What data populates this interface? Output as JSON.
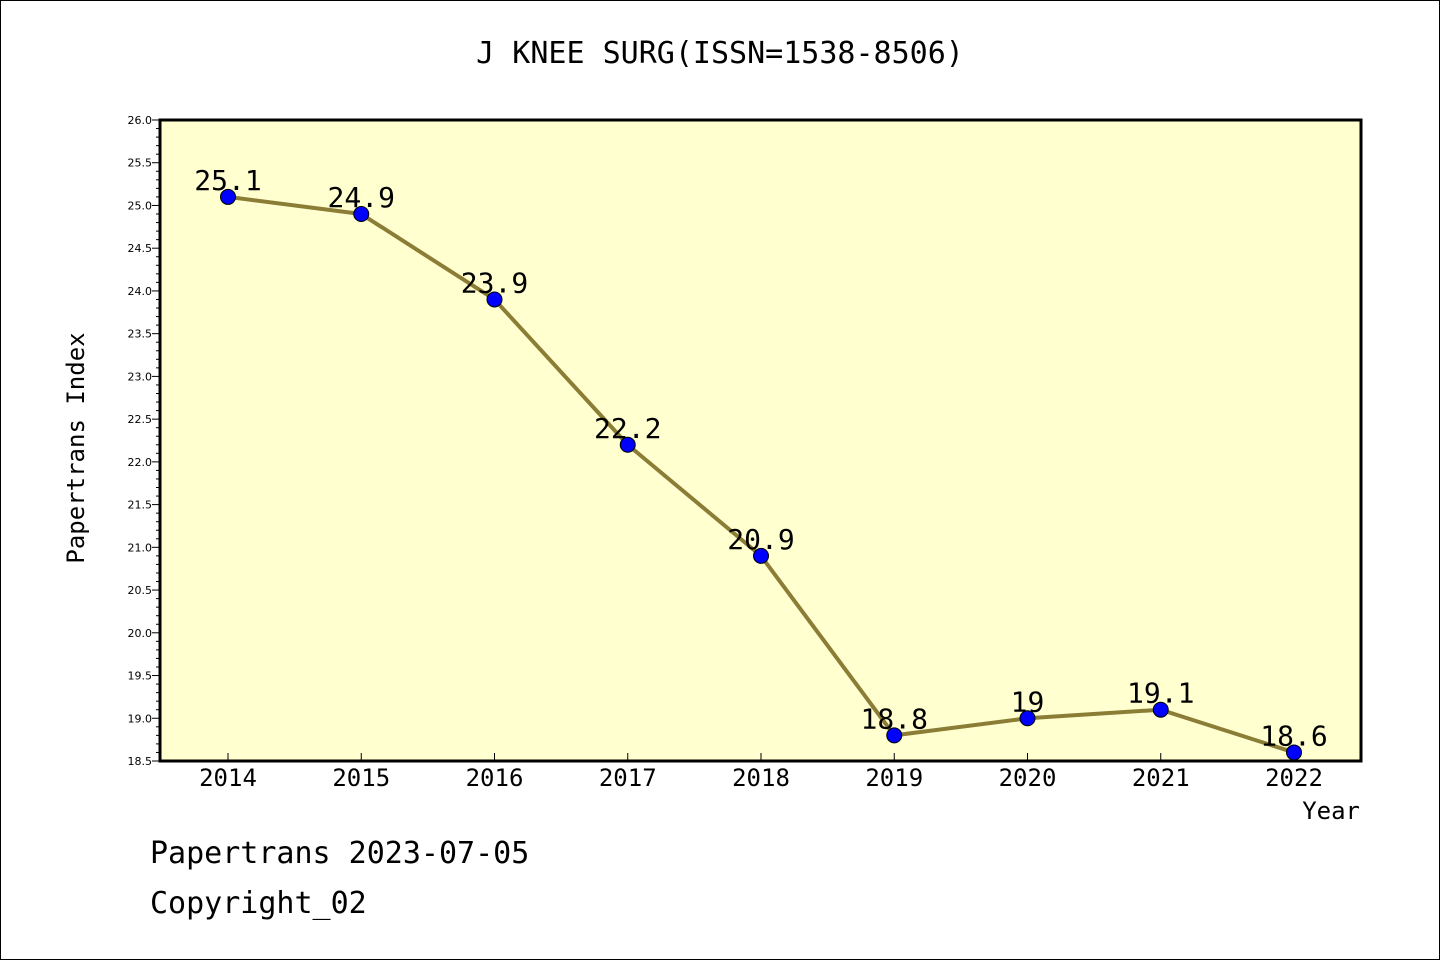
{
  "chart_data": {
    "type": "line",
    "title": "J KNEE SURG(ISSN=1538-8506)",
    "xlabel": "Year",
    "ylabel": "Papertrans Index",
    "categories": [
      "2014",
      "2015",
      "2016",
      "2017",
      "2018",
      "2019",
      "2020",
      "2021",
      "2022"
    ],
    "values": [
      25.1,
      24.9,
      23.9,
      22.2,
      20.9,
      18.8,
      19.0,
      19.1,
      18.6
    ],
    "data_labels": [
      "25.1",
      "24.9",
      "23.9",
      "22.2",
      "20.9",
      "18.8",
      "19",
      "19.1",
      "18.6"
    ],
    "ylim": [
      18.5,
      26.0
    ],
    "yticks": [
      "18.5",
      "19.0",
      "19.5",
      "20.0",
      "20.5",
      "21.0",
      "21.5",
      "22.0",
      "22.5",
      "23.0",
      "23.5",
      "24.0",
      "24.5",
      "25.0",
      "25.5",
      "26.0"
    ],
    "grid": false,
    "colors": {
      "plot_background": "#ffffd0",
      "line": "#8b7d35",
      "marker": "#0000ff"
    }
  },
  "footer": {
    "line1": "Papertrans 2023-07-05",
    "line2": "Copyright_02"
  }
}
